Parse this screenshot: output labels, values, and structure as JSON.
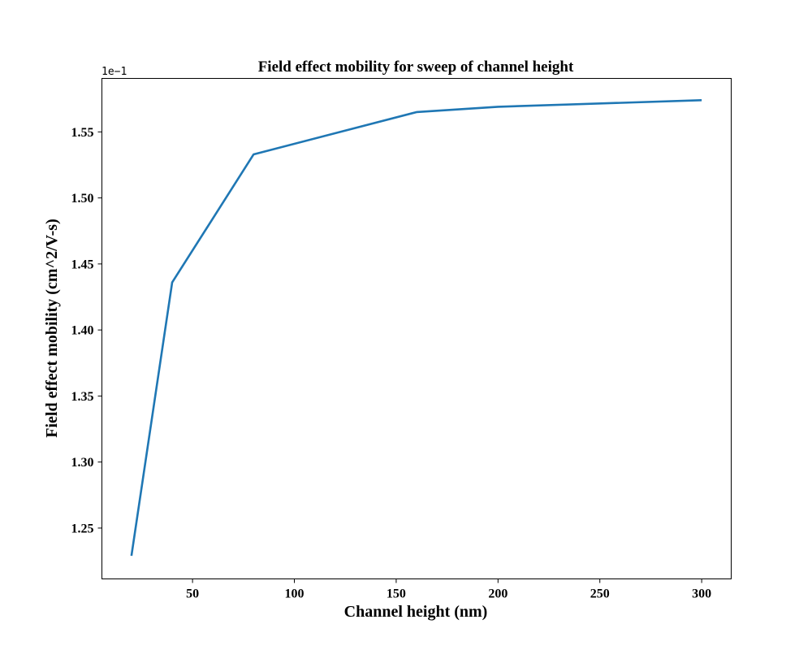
{
  "chart_data": {
    "type": "line",
    "title": "Field effect mobility for sweep of channel height",
    "xlabel": "Channel height (nm)",
    "ylabel": "Field effect mobility (cm^2/V-s)",
    "y_offset_label": "1e−1",
    "xlim": [
      5.5,
      314.5
    ],
    "ylim": [
      1.2115,
      1.5905
    ],
    "x_ticks": [
      50,
      100,
      150,
      200,
      250,
      300
    ],
    "x_tick_labels": [
      "50",
      "100",
      "150",
      "200",
      "250",
      "300"
    ],
    "y_ticks": [
      1.25,
      1.3,
      1.35,
      1.4,
      1.45,
      1.5,
      1.55
    ],
    "y_tick_labels": [
      "1.25",
      "1.30",
      "1.35",
      "1.40",
      "1.45",
      "1.50",
      "1.55"
    ],
    "grid": false,
    "series": [
      {
        "color": "#1f77b4",
        "x": [
          20,
          40,
          80,
          160,
          200,
          300
        ],
        "y": [
          1.229,
          1.436,
          1.533,
          1.565,
          1.569,
          1.574
        ]
      }
    ]
  }
}
